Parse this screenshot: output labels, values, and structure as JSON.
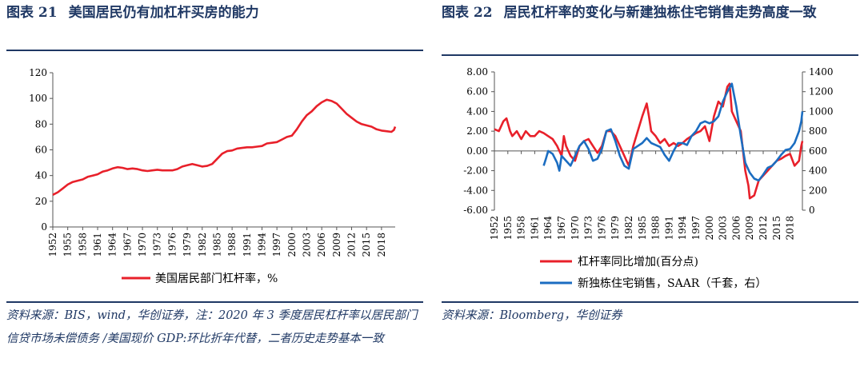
{
  "left": {
    "title_num": "图表 21",
    "title_text": "美国居民仍有加杠杆买房的能力",
    "source": "资料来源：BIS，wind，华创证券，注：2020 年 3 季度居民杠杆率以居民部门信贷市场未偿债务 /美国现价 GDP:环比折年代替，二者历史走势基本一致"
  },
  "right": {
    "title_num": "图表 22",
    "title_text": "居民杠杆率的变化与新建独栋住宅销售走势高度一致",
    "source": "资料来源：Bloomberg，华创证券"
  },
  "colors": {
    "red": "#e8202a",
    "blue": "#1b6dc1",
    "navy": "#1f3864"
  },
  "chart_data": [
    {
      "type": "line",
      "title": "美国居民仍有加杠杆买房的能力",
      "x_ticks": [
        "1952",
        "1955",
        "1958",
        "1961",
        "1964",
        "1967",
        "1970",
        "1973",
        "1976",
        "1979",
        "1982",
        "1985",
        "1988",
        "1991",
        "1994",
        "1997",
        "2000",
        "2003",
        "2006",
        "2009",
        "2012",
        "2015",
        "2018"
      ],
      "xlim": [
        1952,
        2020.75
      ],
      "ylim": [
        0,
        120
      ],
      "y_ticks": [
        "0",
        "20",
        "40",
        "60",
        "80",
        "100",
        "120"
      ],
      "series": [
        {
          "name": "美国居民部门杠杆率，%",
          "x": [
            1952,
            1953,
            1954,
            1955,
            1956,
            1957,
            1958,
            1959,
            1960,
            1961,
            1962,
            1963,
            1964,
            1965,
            1966,
            1967,
            1968,
            1969,
            1970,
            1971,
            1972,
            1973,
            1974,
            1975,
            1976,
            1977,
            1978,
            1979,
            1980,
            1981,
            1982,
            1983,
            1984,
            1985,
            1986,
            1987,
            1988,
            1989,
            1990,
            1991,
            1992,
            1993,
            1994,
            1995,
            1996,
            1997,
            1998,
            1999,
            2000,
            2001,
            2002,
            2003,
            2004,
            2005,
            2006,
            2007,
            2008,
            2009,
            2010,
            2011,
            2012,
            2013,
            2014,
            2015,
            2016,
            2017,
            2018,
            2019,
            2020,
            2020.5,
            2020.75
          ],
          "values": [
            25,
            27,
            30,
            33,
            35,
            36,
            37,
            39,
            40,
            41,
            43,
            44,
            45.5,
            46.5,
            46,
            45,
            45.5,
            45,
            44,
            43.5,
            44,
            44.5,
            44,
            44,
            44,
            45,
            47,
            48,
            49,
            48,
            47,
            47.5,
            49,
            53,
            57,
            59,
            59.5,
            61,
            61.5,
            62,
            62,
            62.5,
            63,
            65,
            65.5,
            66,
            68,
            70,
            71,
            76,
            82,
            87,
            90,
            94,
            97,
            99,
            98,
            96,
            92,
            88,
            85,
            82,
            80,
            79,
            78,
            76,
            75,
            74.5,
            74,
            75.5,
            78
          ]
        }
      ]
    },
    {
      "type": "line",
      "title": "居民杠杆率的变化与新建独栋住宅销售走势高度一致",
      "x_ticks": [
        "1952",
        "1955",
        "1958",
        "1961",
        "1964",
        "1967",
        "1970",
        "1973",
        "1976",
        "1979",
        "1982",
        "1985",
        "1988",
        "1991",
        "1994",
        "1997",
        "2000",
        "2003",
        "2006",
        "2009",
        "2012",
        "2015",
        "2018"
      ],
      "xlim": [
        1952,
        2020.75
      ],
      "y_left": {
        "ylim": [
          -6,
          8
        ],
        "ticks": [
          "-6.00",
          "-4.00",
          "-2.00",
          "0.00",
          "2.00",
          "4.00",
          "6.00",
          "8.00"
        ]
      },
      "y_right": {
        "ylim": [
          0,
          1400
        ],
        "ticks": [
          "0",
          "200",
          "400",
          "600",
          "800",
          "1000",
          "1200",
          "1400"
        ]
      },
      "series": [
        {
          "name": "杠杆率同比增加(百分点)",
          "axis": "left",
          "x": [
            1952,
            1953,
            1954,
            1954.7,
            1955.5,
            1956,
            1957,
            1958,
            1959,
            1960,
            1961,
            1962,
            1963,
            1964,
            1965,
            1966,
            1967,
            1967.5,
            1968,
            1969,
            1970,
            1971,
            1972,
            1973,
            1974,
            1975,
            1976,
            1977,
            1978,
            1979,
            1980,
            1981,
            1982,
            1983,
            1984,
            1985,
            1986,
            1986.5,
            1987,
            1988,
            1989,
            1990,
            1991,
            1992,
            1993,
            1994,
            1995,
            1996,
            1997,
            1998,
            1999,
            2000,
            2001,
            2002,
            2003,
            2004,
            2004.5,
            2005,
            2006,
            2007,
            2008,
            2008.7,
            2009,
            2010,
            2011,
            2012,
            2013,
            2014,
            2015,
            2016,
            2017,
            2018,
            2019,
            2020,
            2020.5,
            2020.75
          ],
          "values": [
            2.2,
            2.0,
            3.0,
            3.3,
            2.0,
            1.5,
            2.0,
            1.2,
            2.0,
            1.5,
            1.5,
            2.0,
            1.8,
            1.5,
            1.2,
            0.5,
            -0.5,
            1.5,
            0.5,
            -0.5,
            -1.0,
            0.5,
            1.0,
            1.2,
            0.5,
            -0.2,
            0.5,
            2.0,
            2.0,
            1.5,
            0.5,
            -0.5,
            -1.5,
            0.5,
            2.0,
            3.5,
            4.8,
            3.5,
            2.0,
            1.5,
            0.8,
            1.2,
            0.5,
            0.8,
            0.5,
            0.8,
            1.2,
            1.5,
            1.8,
            2.0,
            2.5,
            1.0,
            3.5,
            5.0,
            4.5,
            6.5,
            6.8,
            4.0,
            3.0,
            2.0,
            -2.0,
            -3.5,
            -4.8,
            -4.5,
            -3.0,
            -2.5,
            -2.0,
            -1.5,
            -1.0,
            -0.8,
            -0.5,
            -0.3,
            -1.5,
            -1.0,
            0.5,
            1.0
          ]
        },
        {
          "name": "新独栋住宅销售，SAAR（千套，右）",
          "axis": "right",
          "x": [
            1963,
            1963.5,
            1964,
            1965,
            1966,
            1966.5,
            1967,
            1968,
            1969,
            1970,
            1971,
            1972,
            1973,
            1974,
            1975,
            1976,
            1977,
            1978,
            1979,
            1980,
            1981,
            1982,
            1983,
            1984,
            1985,
            1986,
            1987,
            1988,
            1989,
            1990,
            1991,
            1992,
            1993,
            1994,
            1995,
            1996,
            1997,
            1998,
            1999,
            2000,
            2001,
            2002,
            2003,
            2004,
            2005,
            2006,
            2007,
            2008,
            2009,
            2010,
            2011,
            2012,
            2013,
            2014,
            2015,
            2016,
            2017,
            2018,
            2019,
            2020,
            2020.5,
            2020.75
          ],
          "values": [
            450,
            520,
            600,
            570,
            480,
            400,
            550,
            500,
            450,
            550,
            650,
            700,
            620,
            500,
            520,
            620,
            800,
            820,
            700,
            550,
            450,
            420,
            620,
            650,
            680,
            730,
            680,
            660,
            640,
            560,
            500,
            600,
            680,
            680,
            660,
            750,
            800,
            880,
            900,
            880,
            900,
            950,
            1100,
            1200,
            1280,
            1050,
            750,
            480,
            380,
            320,
            300,
            360,
            430,
            450,
            500,
            560,
            610,
            620,
            680,
            800,
            900,
            1000
          ]
        }
      ]
    }
  ]
}
